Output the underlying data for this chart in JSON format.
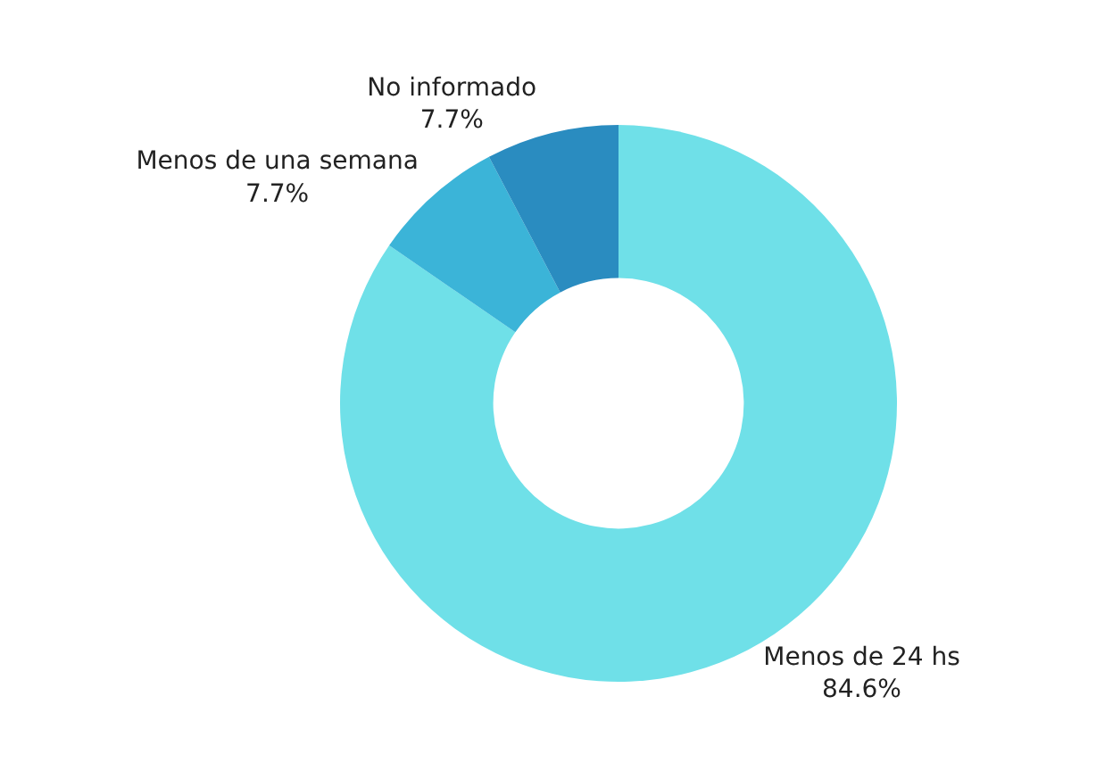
{
  "chart_data": {
    "type": "donut",
    "categories": [
      "Menos de 24 hs",
      "Menos de una semana",
      "No informado"
    ],
    "values": [
      84.6,
      7.7,
      7.7
    ],
    "colors": [
      "#6fe0e8",
      "#3bb4d8",
      "#2a8cc0"
    ],
    "value_labels": [
      "84.6%",
      "7.7%",
      "7.7%"
    ],
    "legend": false
  }
}
